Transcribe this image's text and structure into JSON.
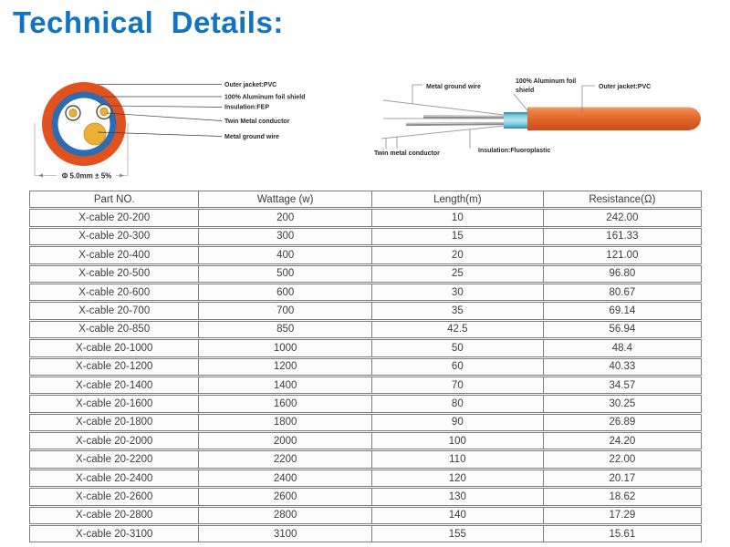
{
  "heading": "Technical  Details:",
  "colors": {
    "heading_blue": "#1173c5",
    "jacket_orange": "#e2521e",
    "foil_shield_blue": "#2e6cb2",
    "conductor_yellow": "#edaf35",
    "side_shield_blue": "#7ecfe0",
    "table_border_gray": "#7c7c7c"
  },
  "cross_section_diagram": {
    "labels": [
      "Outer jacket:PVC",
      "100% Aluminum  foil shield",
      "Insulation:FEP",
      "Twin Metal conductor",
      "Metal  ground wire"
    ],
    "dimension_label": "Φ 5.0mm ± 5%"
  },
  "side_view_diagram": {
    "labels": {
      "metal_ground_wire": "Metal  ground wire",
      "aluminum_foil_line1": "100% Aluminum  foil",
      "aluminum_foil_line2": "shield",
      "outer_jacket": "Outer jacket:PVC",
      "twin_metal_conductor": "Twin metal conductor",
      "insulation": "Insulation:Fluoroplastic"
    }
  },
  "table": {
    "headers": [
      "Part NO.",
      "Wattage (w)",
      "Length(m)",
      "Resistance(Ω)"
    ],
    "rows": [
      [
        "X-cable 20-200",
        "200",
        "10",
        "242.00"
      ],
      [
        "X-cable 20-300",
        "300",
        "15",
        "161.33"
      ],
      [
        "X-cable 20-400",
        "400",
        "20",
        "121.00"
      ],
      [
        "X-cable 20-500",
        "500",
        "25",
        "96.80"
      ],
      [
        "X-cable 20-600",
        "600",
        "30",
        "80.67"
      ],
      [
        "X-cable 20-700",
        "700",
        "35",
        "69.14"
      ],
      [
        "X-cable 20-850",
        "850",
        "42.5",
        "56.94"
      ],
      [
        "X-cable 20-1000",
        "1000",
        "50",
        "48.4"
      ],
      [
        "X-cable 20-1200",
        "1200",
        "60",
        "40.33"
      ],
      [
        "X-cable 20-1400",
        "1400",
        "70",
        "34.57"
      ],
      [
        "X-cable 20-1600",
        "1600",
        "80",
        "30.25"
      ],
      [
        "X-cable 20-1800",
        "1800",
        "90",
        "26.89"
      ],
      [
        "X-cable 20-2000",
        "2000",
        "100",
        "24.20"
      ],
      [
        "X-cable 20-2200",
        "2200",
        "110",
        "22.00"
      ],
      [
        "X-cable 20-2400",
        "2400",
        "120",
        "20.17"
      ],
      [
        "X-cable 20-2600",
        "2600",
        "130",
        "18.62"
      ],
      [
        "X-cable 20-2800",
        "2800",
        "140",
        "17.29"
      ],
      [
        "X-cable 20-3100",
        "3100",
        "155",
        "15.61"
      ]
    ]
  }
}
